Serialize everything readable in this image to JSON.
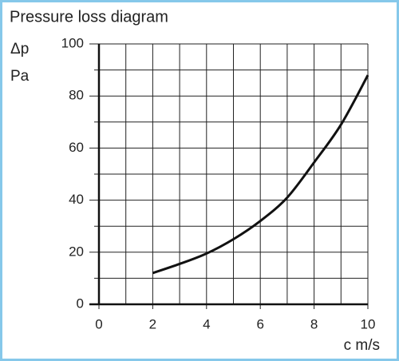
{
  "chart_data": {
    "type": "line",
    "title": "Pressure loss diagram",
    "y_label_lines": [
      "Δp",
      "Pa"
    ],
    "x_label": "c m/s",
    "x": [
      2,
      3,
      4,
      5,
      6,
      7,
      8,
      9,
      10
    ],
    "values": [
      12,
      15.5,
      19.5,
      25,
      32,
      41,
      54.5,
      69,
      88
    ],
    "color": "#111111",
    "xlim": [
      0,
      10
    ],
    "xticks": [
      0,
      2,
      4,
      6,
      8,
      10
    ],
    "ylim": [
      0,
      100
    ],
    "yticks": [
      0,
      20,
      40,
      60,
      80,
      100
    ],
    "grid": true,
    "minor_grid": true
  }
}
